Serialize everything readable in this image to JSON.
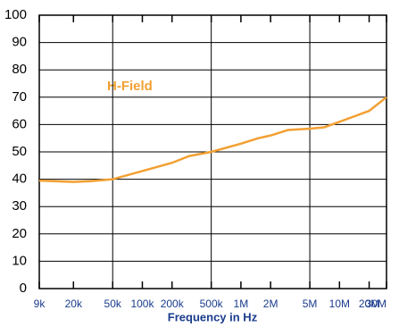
{
  "chart_data": {
    "type": "line",
    "annotation": "H-Field",
    "xlabel": "Frequency in Hz",
    "xscale": "log",
    "xlim": [
      9000,
      30000000
    ],
    "xticks": [
      {
        "value": 9000,
        "label": "9k"
      },
      {
        "value": 20000,
        "label": "20k"
      },
      {
        "value": 50000,
        "label": "50k"
      },
      {
        "value": 100000,
        "label": "100k"
      },
      {
        "value": 200000,
        "label": "200k"
      },
      {
        "value": 500000,
        "label": "500k"
      },
      {
        "value": 1000000,
        "label": "1M"
      },
      {
        "value": 2000000,
        "label": "2M"
      },
      {
        "value": 5000000,
        "label": "5M"
      },
      {
        "value": 10000000,
        "label": "10M"
      },
      {
        "value": 20000000,
        "label": "20M"
      },
      {
        "value": 30000000,
        "label": "30M"
      }
    ],
    "xgrid": [
      50000,
      500000,
      5000000
    ],
    "ylim": [
      0,
      100
    ],
    "yticks": [
      0,
      10,
      20,
      30,
      40,
      50,
      60,
      70,
      80,
      90,
      100
    ],
    "grid": true,
    "x": [
      9000,
      20000,
      30000,
      50000,
      100000,
      200000,
      300000,
      500000,
      1000000,
      1500000,
      2000000,
      3000000,
      5000000,
      7000000,
      10000000,
      20000000,
      30000000
    ],
    "series": [
      {
        "name": "H-Field",
        "color": "#f2a033",
        "values": [
          39.5,
          39,
          39.3,
          40,
          43,
          46,
          48.5,
          50,
          53,
          55,
          56,
          58,
          58.5,
          59,
          61,
          65,
          70
        ]
      }
    ]
  }
}
